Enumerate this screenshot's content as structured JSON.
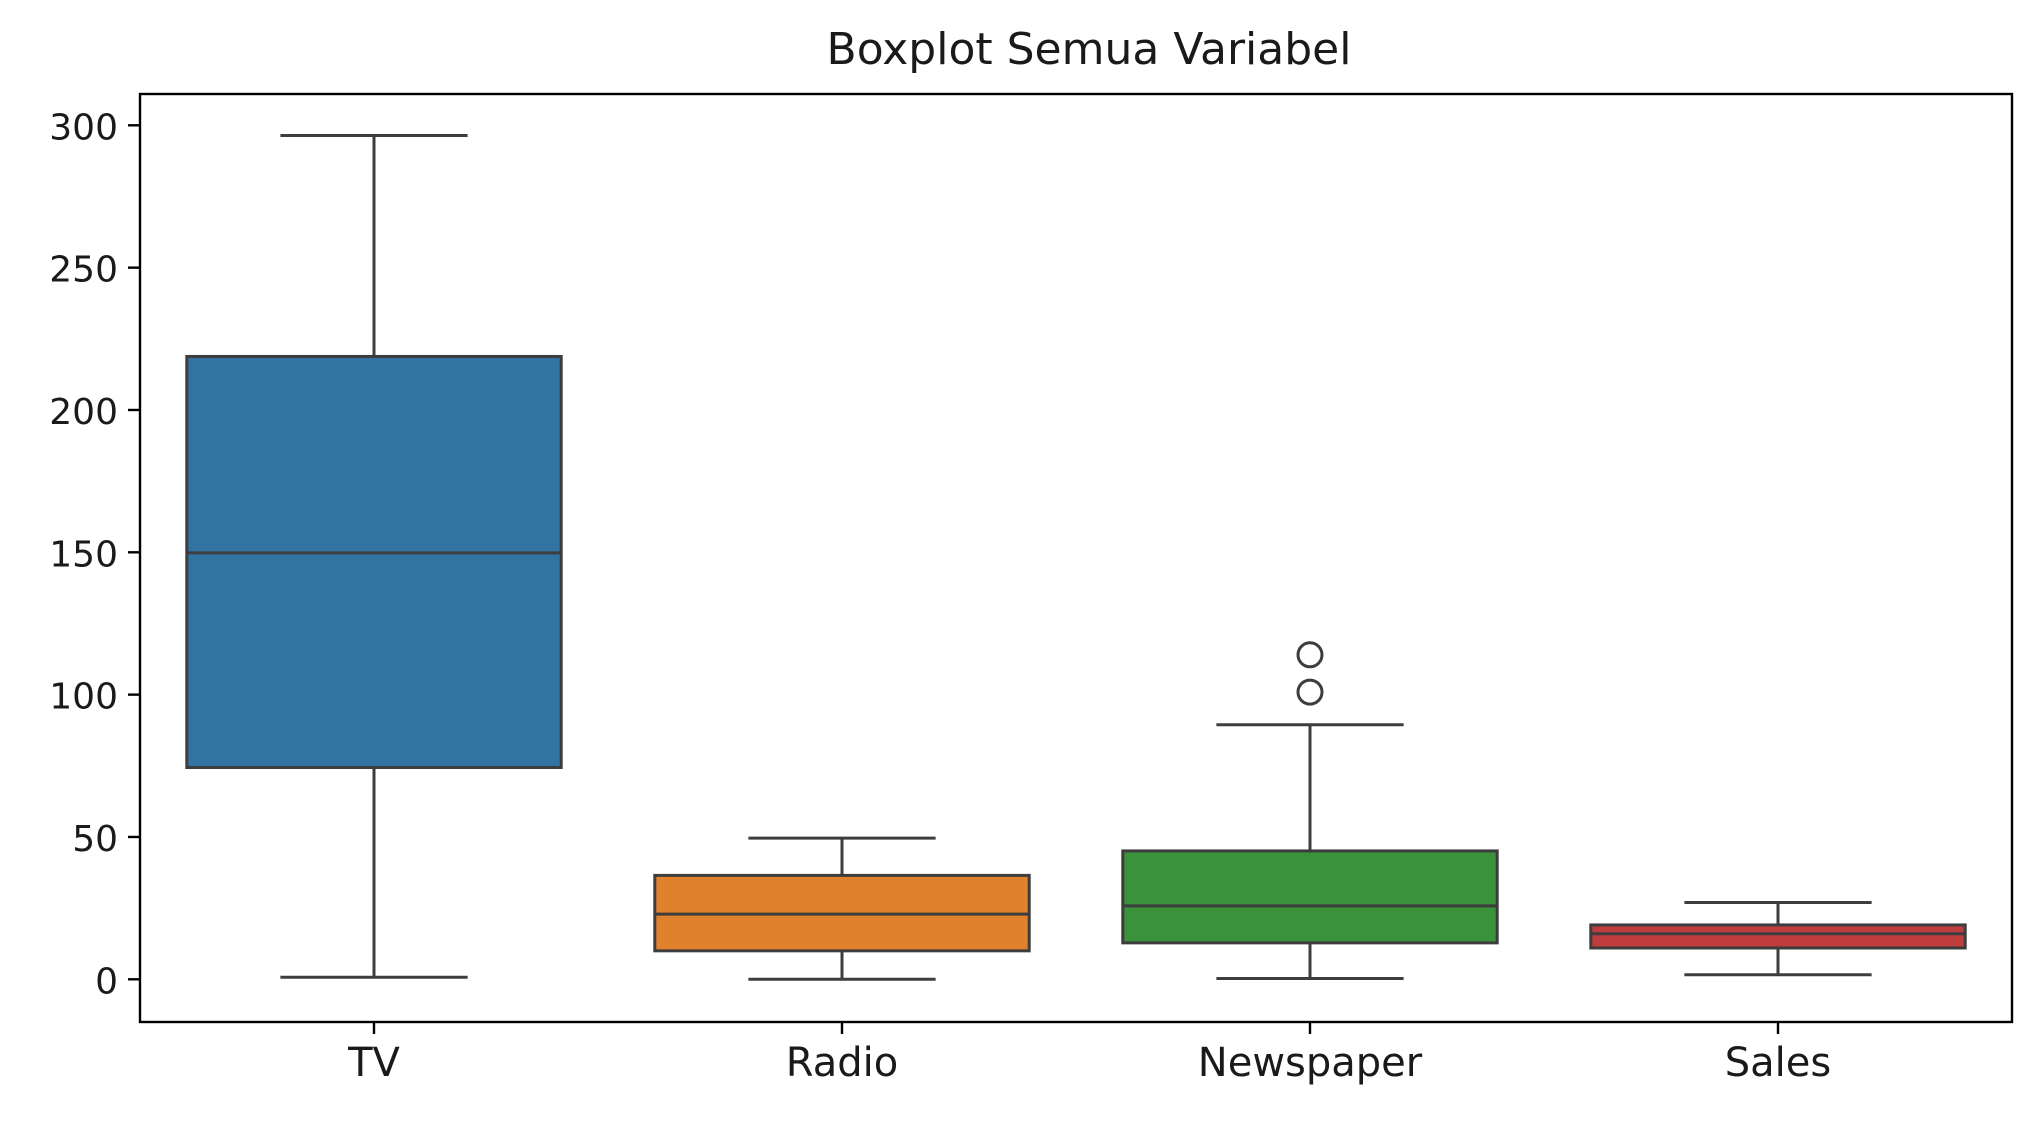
{
  "chart_data": {
    "type": "box",
    "title": "Boxplot Semua Variabel",
    "xlabel": "",
    "ylabel": "",
    "ylim": [
      -15,
      311
    ],
    "yticks": [
      0,
      50,
      100,
      150,
      200,
      250,
      300
    ],
    "categories": [
      "TV",
      "Radio",
      "Newspaper",
      "Sales"
    ],
    "boxes": [
      {
        "category": "TV",
        "whisker_low": 0.7,
        "q1": 74.4,
        "median": 149.8,
        "q3": 218.8,
        "whisker_high": 296.4,
        "outliers": [],
        "color": "#3274a1"
      },
      {
        "category": "Radio",
        "whisker_low": 0.0,
        "q1": 10.0,
        "median": 22.9,
        "q3": 36.5,
        "whisker_high": 49.6,
        "outliers": [],
        "color": "#e1812c"
      },
      {
        "category": "Newspaper",
        "whisker_low": 0.3,
        "q1": 12.8,
        "median": 25.8,
        "q3": 45.1,
        "whisker_high": 89.4,
        "outliers": [
          100.9,
          114.0
        ],
        "color": "#3a923a"
      },
      {
        "category": "Sales",
        "whisker_low": 1.6,
        "q1": 11.0,
        "median": 16.0,
        "q3": 19.1,
        "whisker_high": 27.0,
        "outliers": [],
        "color": "#c03d3e"
      }
    ],
    "grid": false,
    "legend": "none"
  }
}
